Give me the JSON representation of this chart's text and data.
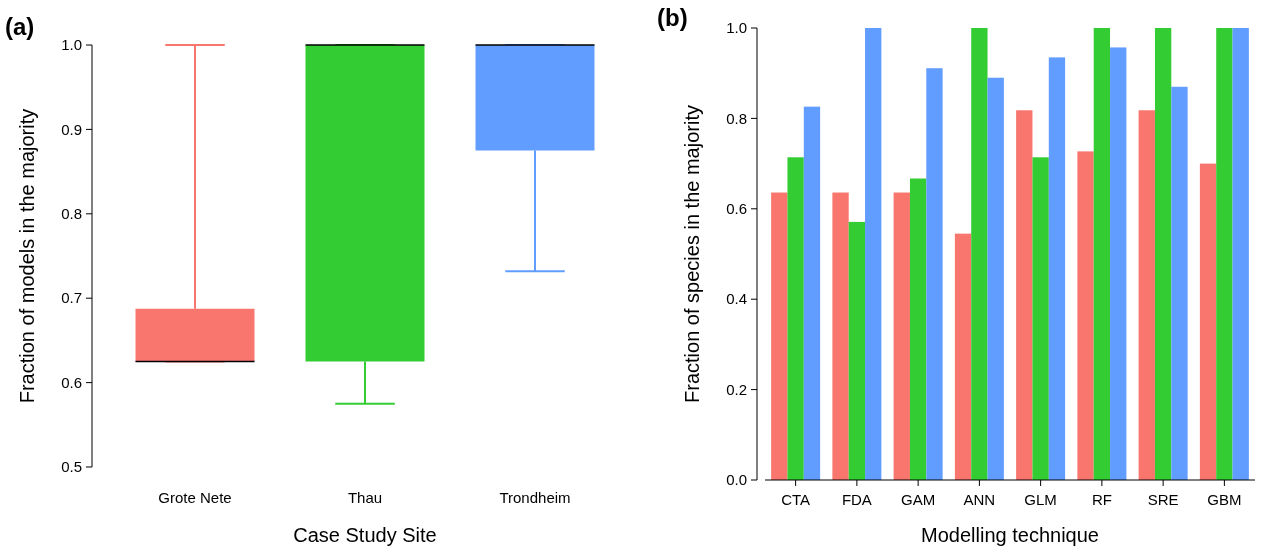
{
  "chart_data": [
    {
      "type": "box",
      "annotations": [
        "(a)"
      ],
      "xlabel": "Case Study Site",
      "ylabel": "Fraction of models in the majority",
      "categories": [
        "Grote Nete",
        "Thau",
        "Trondheim"
      ],
      "colors": [
        "#f8766d",
        "#33cc33",
        "#619cff"
      ],
      "boxes": [
        {
          "low": 0.625,
          "q1": 0.625,
          "median": 0.625,
          "q3": 0.6875,
          "high": 1.0
        },
        {
          "low": 0.575,
          "q1": 0.625,
          "median": 1.0,
          "q3": 1.0,
          "high": 1.0
        },
        {
          "low": 0.732,
          "q1": 0.875,
          "median": 1.0,
          "q3": 1.0,
          "high": 1.0
        }
      ],
      "ylim": [
        0.5,
        1.0
      ],
      "yticks": [
        {
          "value": 0.5,
          "label": "0.5"
        },
        {
          "value": 0.6,
          "label": "0.6"
        },
        {
          "value": 0.7,
          "label": "0.7"
        },
        {
          "value": 0.8,
          "label": "0.8"
        },
        {
          "value": 0.9,
          "label": "0.9"
        },
        {
          "value": 1.0,
          "label": "1.0"
        }
      ]
    },
    {
      "type": "bar",
      "annotations": [
        "(b)"
      ],
      "xlabel": "Modelling technique",
      "ylabel": "Fraction of species in the majority",
      "categories": [
        "CTA",
        "FDA",
        "GAM",
        "ANN",
        "GLM",
        "RF",
        "SRE",
        "GBM"
      ],
      "series": [
        {
          "color": "#f8766d",
          "values": [
            0.636,
            0.636,
            0.636,
            0.545,
            0.818,
            0.727,
            0.818,
            0.7
          ]
        },
        {
          "color": "#33cc33",
          "values": [
            0.714,
            0.571,
            0.667,
            1.0,
            0.714,
            1.0,
            1.0,
            1.0
          ]
        },
        {
          "color": "#619cff",
          "values": [
            0.826,
            1.0,
            0.911,
            0.89,
            0.935,
            0.957,
            0.87,
            1.0
          ]
        }
      ],
      "ylim": [
        0,
        1.0
      ],
      "yticks": [
        {
          "value": 0,
          "label": "0.0"
        },
        {
          "value": 0.2,
          "label": "0.2"
        },
        {
          "value": 0.4,
          "label": "0.4"
        },
        {
          "value": 0.6,
          "label": "0.6"
        },
        {
          "value": 0.8,
          "label": "0.8"
        },
        {
          "value": 1.0,
          "label": "1.0"
        }
      ]
    }
  ]
}
